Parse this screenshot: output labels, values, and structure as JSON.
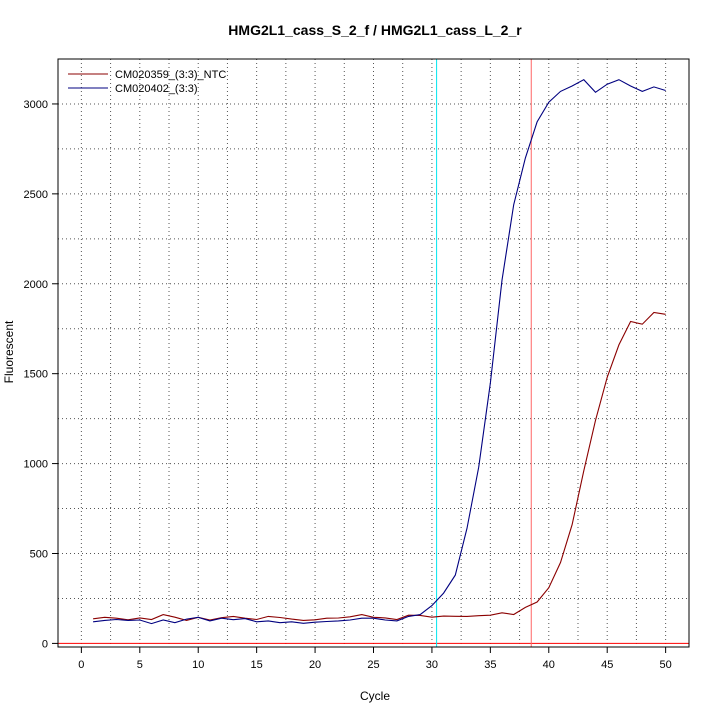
{
  "chart_data": {
    "type": "line",
    "title": "HMG2L1_cass_S_2_f / HMG2L1_cass_L_2_r",
    "xlabel": "Cycle",
    "ylabel": "Fluorescent",
    "xlim": [
      -2,
      52
    ],
    "ylim": [
      -20,
      3250
    ],
    "xticks": [
      0,
      5,
      10,
      15,
      20,
      25,
      30,
      35,
      40,
      45,
      50
    ],
    "yticks": [
      0,
      500,
      1000,
      1500,
      2000,
      2500,
      3000
    ],
    "grid": true,
    "legend_position": "top-left",
    "threshold_line": {
      "value": 0,
      "color": "#ff0000"
    },
    "vertical_markers": [
      {
        "x": 30.4,
        "color": "#00e5ee"
      },
      {
        "x": 38.5,
        "color": "#ff6666"
      }
    ],
    "series": [
      {
        "name": "CM020359_(3:3)_NTC",
        "color": "#8b0000",
        "x": [
          1,
          2,
          3,
          4,
          5,
          6,
          7,
          8,
          9,
          10,
          11,
          12,
          13,
          14,
          15,
          16,
          17,
          18,
          19,
          20,
          21,
          22,
          23,
          24,
          25,
          26,
          27,
          28,
          29,
          30,
          31,
          32,
          33,
          34,
          35,
          36,
          37,
          38,
          39,
          40,
          41,
          42,
          43,
          44,
          45,
          46,
          47,
          48,
          49,
          50
        ],
        "y": [
          137,
          145,
          140,
          131,
          142,
          133,
          160,
          146,
          128,
          145,
          130,
          143,
          150,
          140,
          133,
          150,
          144,
          135,
          128,
          131,
          140,
          141,
          148,
          160,
          145,
          142,
          133,
          157,
          156,
          146,
          152,
          151,
          150,
          154,
          157,
          170,
          161,
          200,
          230,
          310,
          450,
          660,
          960,
          1240,
          1480,
          1660,
          1790,
          1775,
          1840,
          1830
        ]
      },
      {
        "name": "CM020402_(3:3)",
        "color": "#000080",
        "x": [
          1,
          2,
          3,
          4,
          5,
          6,
          7,
          8,
          9,
          10,
          11,
          12,
          13,
          14,
          15,
          16,
          17,
          18,
          19,
          20,
          21,
          22,
          23,
          24,
          25,
          26,
          27,
          28,
          29,
          30,
          31,
          32,
          33,
          34,
          35,
          36,
          37,
          38,
          39,
          40,
          41,
          42,
          43,
          44,
          45,
          46,
          47,
          48,
          49,
          50
        ],
        "y": [
          120,
          128,
          133,
          128,
          130,
          110,
          130,
          115,
          135,
          145,
          125,
          140,
          132,
          138,
          120,
          125,
          115,
          120,
          112,
          118,
          122,
          125,
          130,
          140,
          140,
          130,
          125,
          150,
          160,
          210,
          280,
          380,
          640,
          980,
          1450,
          2020,
          2440,
          2700,
          2900,
          3010,
          3070,
          3100,
          3135,
          3065,
          3110,
          3135,
          3100,
          3070,
          3095,
          3075
        ]
      }
    ]
  }
}
